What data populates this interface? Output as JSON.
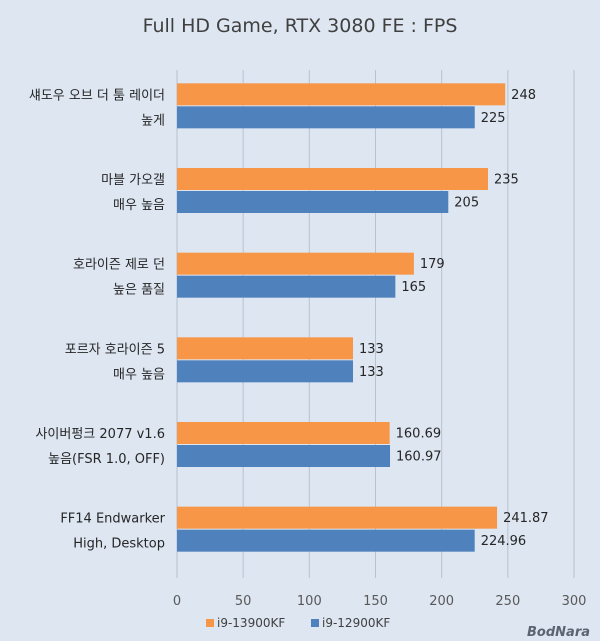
{
  "chart_data": {
    "type": "bar",
    "orientation": "horizontal",
    "title": "Full HD Game, RTX 3080 FE : FPS",
    "categories": [
      [
        "섀도우 오브 더 툼 레이더",
        "높게"
      ],
      [
        "마블 가오갤",
        "매우 높음"
      ],
      [
        "호라이즌 제로 던",
        "높은 품질"
      ],
      [
        "포르자 호라이즌 5",
        "매우 높음"
      ],
      [
        "사이버펑크 2077 v1.6",
        "높음(FSR 1.0, OFF)"
      ],
      [
        "FF14 Endwarker",
        "High, Desktop"
      ]
    ],
    "series": [
      {
        "name": "i9-13900KF",
        "color": "#f79646",
        "values": [
          248,
          235,
          179,
          133,
          160.69,
          241.87
        ],
        "labels": [
          "248",
          "235",
          "179",
          "133",
          "160.69",
          "241.87"
        ]
      },
      {
        "name": "i9-12900KF",
        "color": "#4f81bd",
        "values": [
          225,
          205,
          165,
          133,
          160.97,
          224.96
        ],
        "labels": [
          "225",
          "205",
          "165",
          "133",
          "160.97",
          "224.96"
        ]
      }
    ],
    "xlim": [
      0,
      300
    ],
    "xticks": [
      0,
      50,
      100,
      150,
      200,
      250,
      300
    ],
    "grid": true,
    "legend_position": "bottom"
  },
  "watermark": "BodNara"
}
